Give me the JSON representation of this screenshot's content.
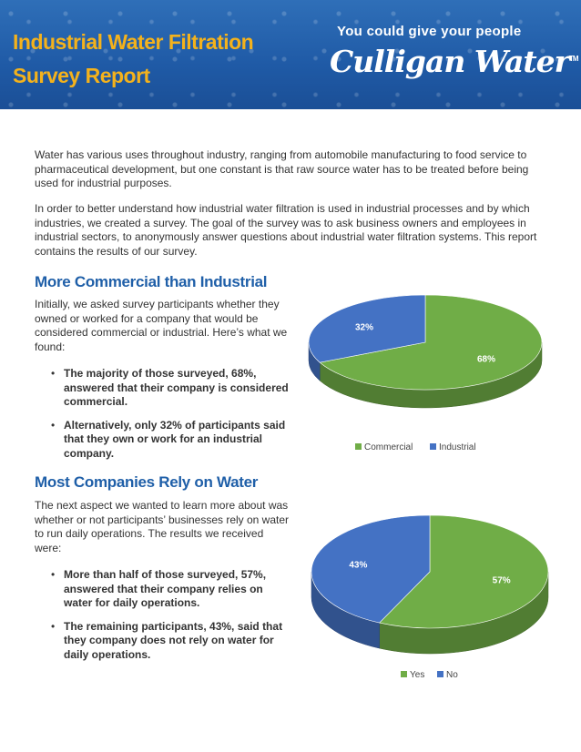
{
  "header": {
    "title_line1": "Industrial Water Filtration",
    "title_line2": "Survey Report",
    "tagline": "You could give your people",
    "logo_text": "Culligan Water",
    "logo_mark": "TM",
    "colors": {
      "background": "#1f5aa6",
      "title": "#f4b21c"
    }
  },
  "intro": {
    "p1": "Water has various uses throughout industry, ranging from automobile manufacturing to food service to pharmaceutical development, but one constant is that raw source water has to be treated before being used for industrial purposes.",
    "p2": "In order to better understand how industrial water filtration is used in industrial processes and by which industries, we created a survey. The goal of the survey was to ask business owners and employees in industrial sectors, to anonymously answer questions about industrial water filtration systems.  This report contains the results of our survey."
  },
  "section1": {
    "heading": "More Commercial than Industrial",
    "lead": "Initially, we asked survey participants whether they owned or worked for a company that would be considered commercial or industrial. Here’s what we found:",
    "bullets": [
      "The majority of those surveyed, 68%, answered that their company is considered commercial.",
      "Alternatively, only 32% of participants said that they own or work for an industrial company."
    ]
  },
  "section2": {
    "heading": "Most Companies Rely on Water",
    "lead": "The next aspect we wanted to learn more about was whether or not participants’ businesses rely on water to run daily operations. The results we received were:",
    "bullets": [
      "More than half of those surveyed, 57%, answered that their company relies on water for daily operations.",
      "The remaining participants, 43%, said that they company does not rely on water for daily operations."
    ]
  },
  "charts": [
    {
      "type": "pie",
      "slices": [
        {
          "name": "Commercial",
          "value": 68,
          "label": "68%",
          "color": "#70ad47"
        },
        {
          "name": "Industrial",
          "value": 32,
          "label": "32%",
          "color": "#4472c4"
        }
      ],
      "legend": [
        "Commercial",
        "Industrial"
      ],
      "legend_position": "bottom"
    },
    {
      "type": "pie",
      "slices": [
        {
          "name": "Yes",
          "value": 57,
          "label": "57%",
          "color": "#70ad47"
        },
        {
          "name": "No",
          "value": 43,
          "label": "43%",
          "color": "#4472c4"
        }
      ],
      "legend": [
        "Yes",
        "No"
      ],
      "legend_position": "bottom"
    }
  ]
}
